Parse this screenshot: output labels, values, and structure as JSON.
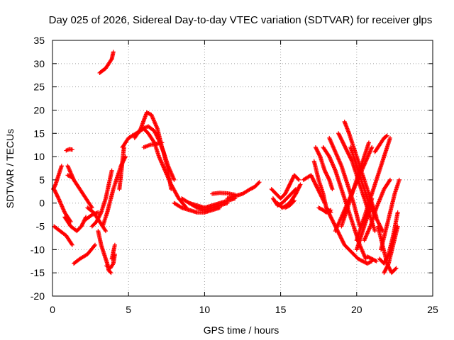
{
  "chart_data": {
    "type": "scatter",
    "title": "Day 025 of 2026, Sidereal Day-to-day VTEC variation (SDTVAR) for receiver glps",
    "xlabel": "GPS time / hours",
    "ylabel": "SDTVAR / TECUs",
    "xlim": [
      0,
      25
    ],
    "ylim": [
      -20,
      35
    ],
    "xticks": [
      "0",
      "5",
      "10",
      "15",
      "20",
      "25"
    ],
    "yticks": [
      "-20",
      "-15",
      "-10",
      "-5",
      "0",
      "5",
      "10",
      "15",
      "20",
      "25",
      "30",
      "35"
    ],
    "grid": true,
    "marker": "+",
    "color": "#ff0000",
    "tracks": [
      {
        "x": [
          0.05,
          0.2,
          0.4,
          0.6
        ],
        "y": [
          3,
          4,
          6,
          8
        ]
      },
      {
        "x": [
          0.1,
          0.4,
          0.8,
          1.2
        ],
        "y": [
          3,
          1,
          -2,
          -4
        ]
      },
      {
        "x": [
          0.1,
          0.5,
          0.9,
          1.3
        ],
        "y": [
          -5,
          -6,
          -7,
          -9
        ]
      },
      {
        "x": [
          0.8,
          1.2,
          1.6,
          1.9,
          2.2
        ],
        "y": [
          -3,
          -5,
          -6,
          -5,
          -3
        ]
      },
      {
        "x": [
          0.9,
          1.1,
          1.3
        ],
        "y": [
          11.3,
          11.6,
          11.5
        ]
      },
      {
        "x": [
          1.0,
          1.3
        ],
        "y": [
          6,
          5.5
        ]
      },
      {
        "x": [
          1.0,
          1.4,
          1.8,
          2.2,
          2.6
        ],
        "y": [
          8,
          5,
          3,
          1,
          -1
        ]
      },
      {
        "x": [
          1.4,
          1.8,
          2.3,
          2.8
        ],
        "y": [
          -13,
          -12,
          -11,
          -9
        ]
      },
      {
        "x": [
          2.2,
          2.6,
          3.0
        ],
        "y": [
          -3.5,
          -2.5,
          -2
        ]
      },
      {
        "x": [
          2.3,
          2.7,
          3.1,
          3.5
        ],
        "y": [
          -1,
          -2,
          -4,
          -6
        ]
      },
      {
        "x": [
          2.6,
          2.9,
          3.2,
          3.5,
          3.7,
          3.9
        ],
        "y": [
          -5,
          -4,
          -2,
          1,
          4,
          7
        ]
      },
      {
        "x": [
          3.0,
          3.2,
          3.4,
          3.6,
          3.7,
          3.85
        ],
        "y": [
          -6,
          -9,
          -11,
          -13,
          -14.5,
          -15
        ]
      },
      {
        "x": [
          3.3,
          3.6,
          4.0,
          4.5,
          4.8
        ],
        "y": [
          -5,
          -2,
          3,
          8,
          10
        ]
      },
      {
        "x": [
          3.55,
          3.8,
          4.0,
          4.1
        ],
        "y": [
          -13.5,
          -14,
          -13,
          -11
        ]
      },
      {
        "x": [
          3.9,
          4.1
        ],
        "y": [
          -12,
          -9
        ]
      },
      {
        "x": [
          3.1,
          3.3,
          3.5,
          3.7,
          3.9,
          4.0
        ],
        "y": [
          28,
          28.5,
          29,
          30,
          31,
          32.5
        ]
      },
      {
        "x": [
          4.4,
          4.5,
          4.6,
          4.7
        ],
        "y": [
          3,
          6,
          9,
          12
        ]
      },
      {
        "x": [
          4.6,
          5.0,
          5.5,
          6.0,
          6.3,
          6.7,
          7.0,
          7.4,
          7.8,
          8.3,
          8.8
        ],
        "y": [
          12,
          14,
          15,
          16,
          15,
          13,
          10,
          7,
          4,
          1,
          -1
        ]
      },
      {
        "x": [
          5.4,
          5.8,
          6.2,
          6.5,
          6.9,
          7.2,
          7.6,
          8.0
        ],
        "y": [
          14,
          16,
          19.5,
          19,
          16,
          12,
          8,
          5
        ]
      },
      {
        "x": [
          5.6,
          5.9,
          6.3,
          6.7,
          7.0,
          7.3,
          7.6,
          7.8
        ],
        "y": [
          15,
          16,
          16.5,
          15.5,
          13.5,
          11,
          7,
          3
        ]
      },
      {
        "x": [
          6.0,
          6.4,
          6.9,
          7.2
        ],
        "y": [
          12,
          12.5,
          12.8,
          13
        ]
      },
      {
        "x": [
          8.0,
          8.5,
          9.0,
          9.5,
          10.0,
          10.5,
          11.0
        ],
        "y": [
          0,
          -1,
          -1.5,
          -2,
          -2,
          -1.5,
          -1
        ]
      },
      {
        "x": [
          8.5,
          9.0,
          9.5,
          10.0,
          10.5,
          11.0,
          11.5
        ],
        "y": [
          1,
          0,
          -1,
          -1.5,
          -1,
          -0.5,
          0
        ]
      },
      {
        "x": [
          9.0,
          9.5,
          10.0,
          10.5,
          11.0,
          11.5,
          12.0
        ],
        "y": [
          0,
          -0.5,
          -1,
          -0.5,
          0,
          0.5,
          1
        ]
      },
      {
        "x": [
          10.5,
          11.0,
          11.5,
          12.0
        ],
        "y": [
          2,
          2.2,
          2.1,
          1.8
        ]
      },
      {
        "x": [
          11.5,
          12.0,
          12.5,
          13.0,
          13.3,
          13.6
        ],
        "y": [
          1,
          1.5,
          2,
          3,
          3.5,
          4.5
        ]
      },
      {
        "x": [
          14.4,
          14.7,
          15.0,
          15.3,
          15.6,
          15.9,
          16.2
        ],
        "y": [
          3,
          2,
          1,
          2,
          4,
          6,
          5
        ]
      },
      {
        "x": [
          14.5,
          14.8,
          15.1,
          15.4,
          15.7,
          16.0
        ],
        "y": [
          1,
          -0.5,
          0,
          1,
          2,
          3
        ]
      },
      {
        "x": [
          14.8,
          15.1,
          15.4,
          15.7,
          16.0,
          16.3
        ],
        "y": [
          0,
          -1,
          -0.5,
          0.5,
          2,
          4
        ]
      },
      {
        "x": [
          15.3,
          15.6,
          15.9
        ],
        "y": [
          -1,
          -0.5,
          0.5
        ]
      },
      {
        "x": [
          16.5,
          17.0,
          17.3,
          17.6,
          17.9
        ],
        "y": [
          5,
          6,
          4,
          2,
          0
        ]
      },
      {
        "x": [
          17.2,
          17.5,
          17.8,
          18.0,
          18.3
        ],
        "y": [
          9,
          5,
          2,
          -1,
          -2
        ]
      },
      {
        "x": [
          17.3,
          17.6,
          17.9,
          18.2,
          18.4
        ],
        "y": [
          12,
          10,
          7,
          5,
          3
        ]
      },
      {
        "x": [
          17.5,
          17.8,
          18.0,
          18.3
        ],
        "y": [
          -1,
          -1.5,
          -2,
          -1.5
        ]
      },
      {
        "x": [
          18.0,
          18.3,
          18.6,
          18.9,
          19.2,
          19.5,
          19.8,
          20.1,
          20.4,
          20.7,
          21.0
        ],
        "y": [
          -1,
          -3,
          -5,
          -7,
          -9,
          -10,
          -11,
          -12,
          -12.5,
          -13,
          -12.5
        ]
      },
      {
        "x": [
          17.8,
          18.2,
          18.6,
          19.0,
          19.4,
          19.8,
          20.2,
          20.6
        ],
        "y": [
          12,
          10,
          7,
          3,
          -1,
          -5,
          -9,
          -12
        ]
      },
      {
        "x": [
          18.2,
          18.6,
          19.0,
          19.4,
          19.8,
          20.2
        ],
        "y": [
          14,
          11,
          8,
          4,
          0,
          -5
        ]
      },
      {
        "x": [
          18.8,
          19.1,
          19.4,
          19.7,
          20.0,
          20.3,
          20.6,
          20.9,
          21.2
        ],
        "y": [
          15,
          13,
          11,
          9,
          6,
          3,
          0,
          -3,
          -6
        ]
      },
      {
        "x": [
          19.2,
          19.5,
          19.8,
          20.1,
          20.4,
          20.7,
          21.0,
          21.3
        ],
        "y": [
          17.5,
          15,
          12,
          9,
          6,
          3,
          0,
          -3
        ]
      },
      {
        "x": [
          19.6,
          19.9,
          20.2,
          20.5,
          20.8,
          21.1,
          21.4,
          21.7
        ],
        "y": [
          12,
          9,
          6,
          3,
          0,
          -2,
          -4,
          -6
        ]
      },
      {
        "x": [
          18.6,
          19.0,
          19.4,
          19.8,
          20.2,
          20.6,
          21.0
        ],
        "y": [
          -6,
          -3,
          0,
          3,
          6,
          9,
          12
        ]
      },
      {
        "x": [
          19.0,
          19.5,
          20.0,
          20.4,
          20.8
        ],
        "y": [
          -5,
          0,
          5,
          9,
          13
        ]
      },
      {
        "x": [
          20.0,
          20.5,
          21.0,
          21.4,
          21.8,
          22.2
        ],
        "y": [
          -8,
          -3,
          2,
          6,
          10,
          14
        ]
      },
      {
        "x": [
          20.0,
          20.4,
          20.8,
          21.0
        ],
        "y": [
          -10,
          -6,
          -2,
          1
        ]
      },
      {
        "x": [
          20.5,
          20.9,
          21.3,
          21.8,
          22.2
        ],
        "y": [
          -8,
          -5,
          -1,
          3,
          5
        ]
      },
      {
        "x": [
          21.2,
          21.4,
          21.6,
          21.8,
          22.0
        ],
        "y": [
          11,
          12,
          13,
          14,
          14.5
        ]
      },
      {
        "x": [
          20.7,
          21.0,
          21.3
        ],
        "y": [
          -11.5,
          -12,
          -12.5
        ]
      },
      {
        "x": [
          21.4,
          21.7,
          22.0,
          22.3,
          22.6
        ],
        "y": [
          -5,
          -9,
          -13,
          -15,
          -14
        ]
      },
      {
        "x": [
          21.5,
          21.8,
          22.1,
          22.4,
          22.7
        ],
        "y": [
          -12,
          -13,
          -11,
          -7,
          -2
        ]
      },
      {
        "x": [
          21.8,
          22.1,
          22.4,
          22.7
        ],
        "y": [
          -15,
          -13,
          -9,
          -5
        ]
      },
      {
        "x": [
          21.6,
          21.9,
          22.2,
          22.5,
          22.8
        ],
        "y": [
          -10,
          -6,
          -2,
          2,
          5
        ]
      }
    ]
  }
}
